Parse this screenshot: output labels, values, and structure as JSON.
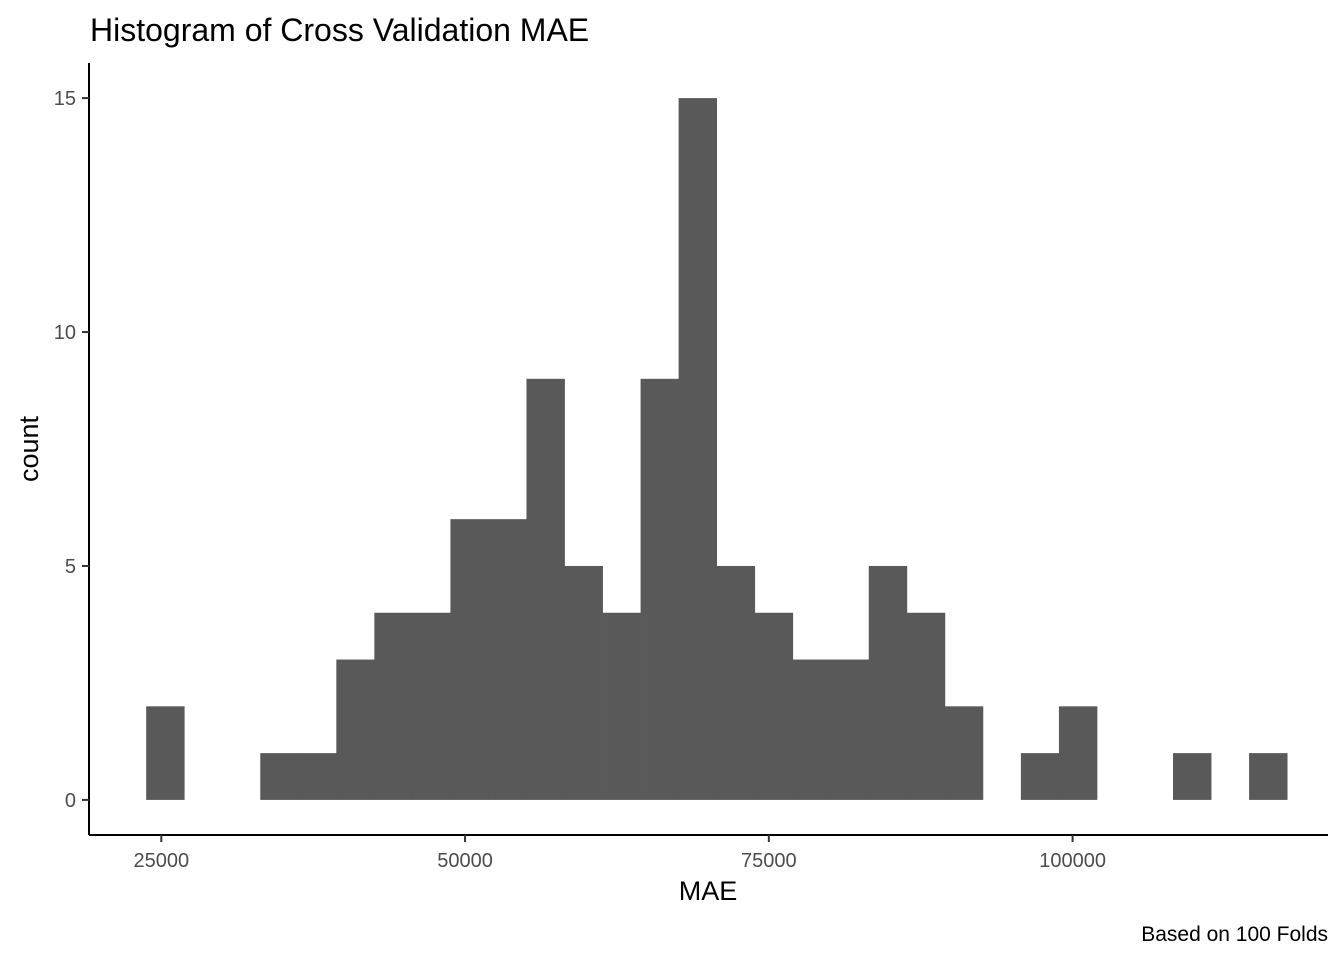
{
  "chart_data": {
    "type": "bar",
    "title": "Histogram of Cross Validation MAE",
    "xlabel": "MAE",
    "ylabel": "count",
    "caption": "Based on 100 Folds",
    "bin_width": 3130,
    "bins_x_start": [
      23755,
      26885,
      30015,
      33145,
      36275,
      39405,
      42535,
      45665,
      48795,
      51925,
      55055,
      58185,
      61315,
      64445,
      67575,
      70705,
      73835,
      76965,
      80095,
      83225,
      86355,
      89485,
      92615,
      95745,
      98875,
      102005,
      105135,
      108265,
      111395,
      114525
    ],
    "values": [
      2,
      0,
      0,
      1,
      1,
      3,
      4,
      4,
      6,
      6,
      9,
      5,
      4,
      9,
      15,
      5,
      4,
      3,
      3,
      5,
      4,
      2,
      0,
      1,
      2,
      0,
      0,
      1,
      0,
      1
    ],
    "xlim": [
      19050,
      121020
    ],
    "ylim": [
      -0.75,
      15.75
    ],
    "x_ticks": [
      25000,
      50000,
      75000,
      100000
    ],
    "x_tick_labels": [
      "25000",
      "50000",
      "75000",
      "100000"
    ],
    "y_ticks": [
      0,
      5,
      10,
      15
    ],
    "y_tick_labels": [
      "0",
      "5",
      "10",
      "15"
    ],
    "grid": false,
    "legend": "none",
    "colors": {
      "bar": "#595959",
      "axis": "#000000",
      "tick_label": "#4d4d4d",
      "text": "#000000"
    }
  }
}
